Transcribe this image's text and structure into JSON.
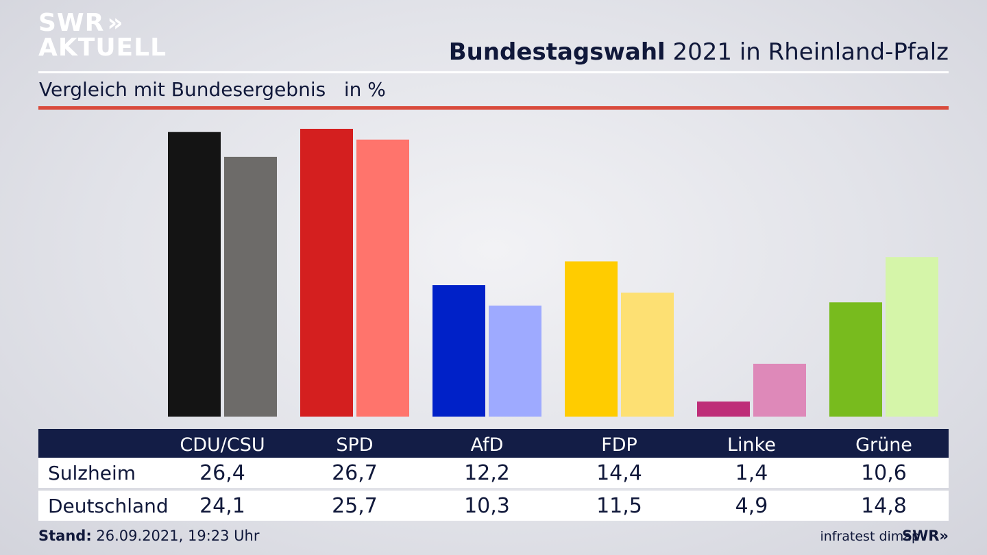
{
  "header": {
    "logo_line1": "SWR",
    "logo_chevrons": "»",
    "logo_line2": "AKTUELL",
    "title_bold": "Bundestagswahl",
    "title_rest": " 2021 in Rheinland-Pfalz",
    "subtitle": "Vergleich mit Bundesergebnis   in %"
  },
  "colors": {
    "regional": [
      "#141414",
      "#d41f1f",
      "#0021c8",
      "#ffcc00",
      "#be2d78",
      "#78bb1e"
    ],
    "national": [
      "#6d6b69",
      "#ff746c",
      "#9eaaff",
      "#fde073",
      "#de89b9",
      "#d5f5a9"
    ],
    "header_band": "#131d46",
    "accent_rule": "#d94a3c"
  },
  "chart_data": {
    "type": "bar",
    "categories": [
      "CDU/CSU",
      "SPD",
      "AfD",
      "FDP",
      "Linke",
      "Grüne"
    ],
    "series": [
      {
        "name": "Sulzheim",
        "values": [
          26.4,
          26.7,
          12.2,
          14.4,
          1.4,
          10.6
        ]
      },
      {
        "name": "Deutschland",
        "values": [
          24.1,
          25.7,
          10.3,
          11.5,
          4.9,
          14.8
        ]
      }
    ],
    "title": "Bundestagswahl 2021 in Rheinland-Pfalz",
    "subtitle": "Vergleich mit Bundesergebnis   in %",
    "ylim": [
      0,
      26.7
    ],
    "grid": false
  },
  "table": {
    "rows": [
      {
        "label": "Sulzheim",
        "values": [
          "26,4",
          "26,7",
          "12,2",
          "14,4",
          "1,4",
          "10,6"
        ]
      },
      {
        "label": "Deutschland",
        "values": [
          "24,1",
          "25,7",
          "10,3",
          "11,5",
          "4,9",
          "14,8"
        ]
      }
    ]
  },
  "footer": {
    "stand_label": "Stand:",
    "stand_value": " 26.09.2021, 19:23 Uhr",
    "source": "infratest dimap",
    "source_logo": "SWR»"
  }
}
